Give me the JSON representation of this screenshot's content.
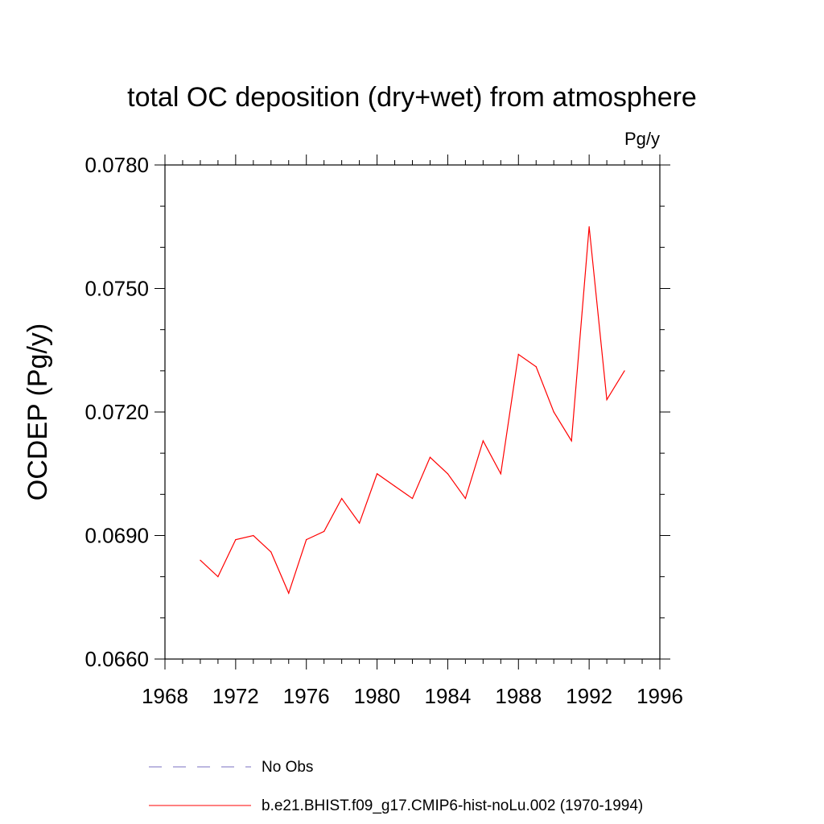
{
  "chart_data": {
    "type": "line",
    "title": "total OC deposition (dry+wet) from atmosphere",
    "units": "Pg/y",
    "xlabel": "",
    "ylabel": "OCDEP  (Pg/y)",
    "xlim": [
      1968,
      1996
    ],
    "ylim": [
      0.066,
      0.078
    ],
    "x_ticks": [
      "1968",
      "1972",
      "1976",
      "1980",
      "1984",
      "1988",
      "1992",
      "1996"
    ],
    "y_ticks": [
      "0.0660",
      "0.0690",
      "0.0720",
      "0.0750",
      "0.0780"
    ],
    "grid": false,
    "series": [
      {
        "name": "b.e21.BHIST.f09_g17.CMIP6-hist-noLu.002 (1970-1994)",
        "color": "#ff0000",
        "style": "solid",
        "x": [
          1970,
          1971,
          1972,
          1973,
          1974,
          1975,
          1976,
          1977,
          1978,
          1979,
          1980,
          1981,
          1982,
          1983,
          1984,
          1985,
          1986,
          1987,
          1988,
          1989,
          1990,
          1991,
          1992,
          1993,
          1994
        ],
        "values": [
          0.0684,
          0.068,
          0.0689,
          0.069,
          0.0686,
          0.0676,
          0.0689,
          0.0691,
          0.0699,
          0.0693,
          0.0705,
          0.0702,
          0.0699,
          0.0709,
          0.0705,
          0.0699,
          0.0713,
          0.0705,
          0.0734,
          0.0731,
          0.072,
          0.0713,
          0.0765,
          0.0723,
          0.073
        ]
      }
    ],
    "legend": [
      {
        "label": "No Obs",
        "color": "#7a6fc0",
        "style": "dashed"
      },
      {
        "label": "b.e21.BHIST.f09_g17.CMIP6-hist-noLu.002 (1970-1994)",
        "color": "#ff0000",
        "style": "solid"
      }
    ],
    "legend_position": "bottom"
  }
}
